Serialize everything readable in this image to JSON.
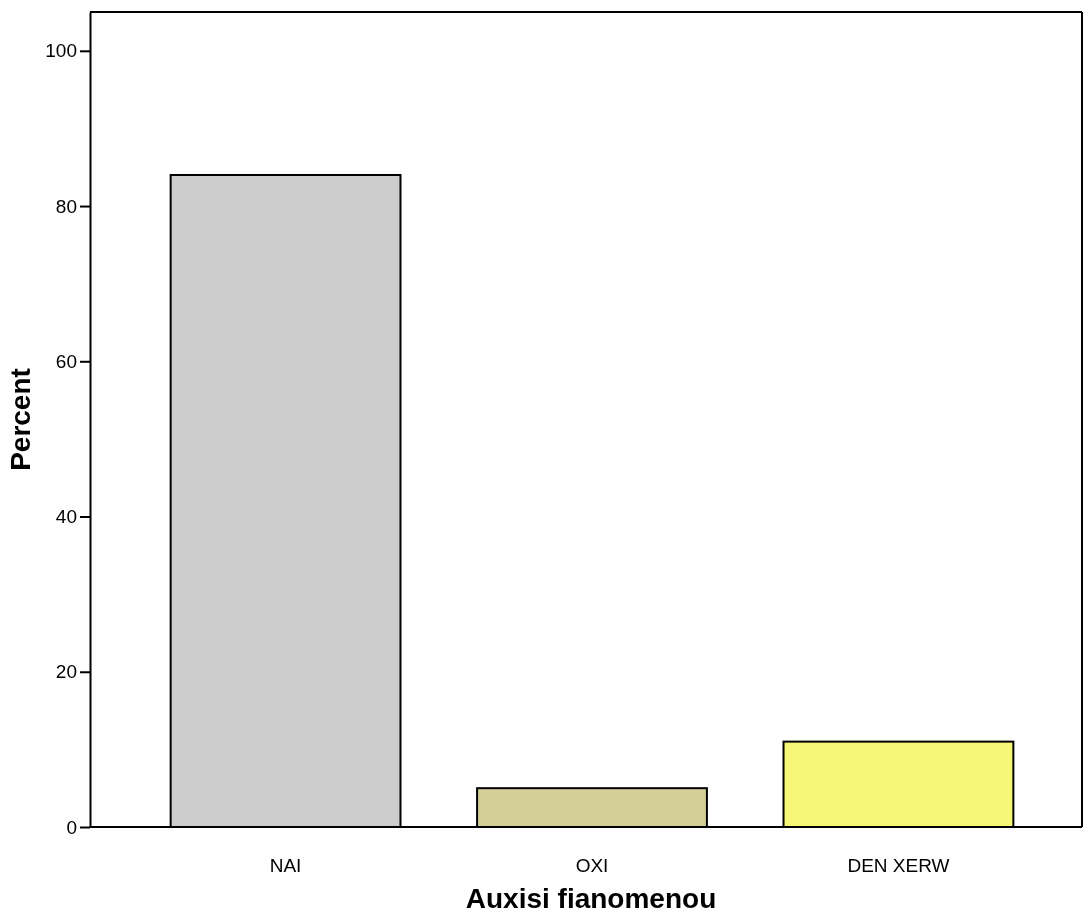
{
  "chart_data": {
    "type": "bar",
    "xlabel": "Auxisi fianomenou",
    "ylabel": "Percent",
    "categories": [
      "NAI",
      "OXI",
      "DEN XERW"
    ],
    "values": [
      84,
      5,
      11
    ],
    "colors": [
      "#cccccc",
      "#d3cf96",
      "#f7f777"
    ],
    "ylim": [
      0,
      105
    ],
    "yticks": [
      0,
      20,
      40,
      60,
      80,
      100
    ],
    "grid": false
  }
}
